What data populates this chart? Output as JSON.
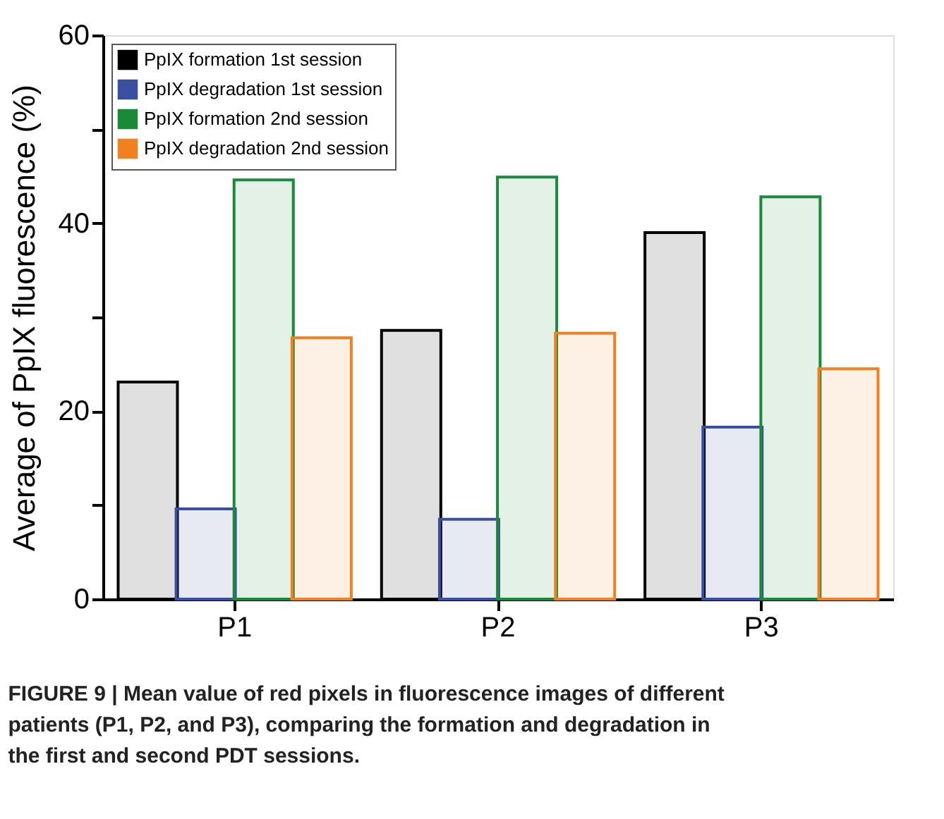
{
  "chart_data": {
    "type": "bar",
    "ylabel": "Average of PpIX fluorescence (%)",
    "categories": [
      "P1",
      "P2",
      "P3"
    ],
    "series": [
      {
        "name": "PpIX formation 1st session",
        "color": "#000000",
        "values": [
          23.1,
          28.6,
          39.0
        ]
      },
      {
        "name": "PpIX degradation 1st session",
        "color": "#3b4fa0",
        "values": [
          9.6,
          8.5,
          18.3
        ]
      },
      {
        "name": "PpIX formation 2nd session",
        "color": "#1a8a3a",
        "values": [
          44.6,
          44.9,
          42.8
        ]
      },
      {
        "name": "PpIX degradation 2nd session",
        "color": "#f08020",
        "values": [
          27.8,
          28.3,
          24.5
        ]
      }
    ],
    "ylim": [
      0,
      60
    ],
    "yticks": [
      0,
      {
        "value": 10,
        "label": null
      },
      20,
      {
        "value": 30,
        "label": null
      },
      40,
      {
        "value": 50,
        "label": null
      },
      60
    ],
    "grid": false,
    "legend": "top left",
    "annotations": [
      "FIGURE 9 | Mean value of red pixels in fluorescence images of different patients (P1, P2, and P3), comparing the formation and degradation in the first and second PDT sessions."
    ]
  }
}
